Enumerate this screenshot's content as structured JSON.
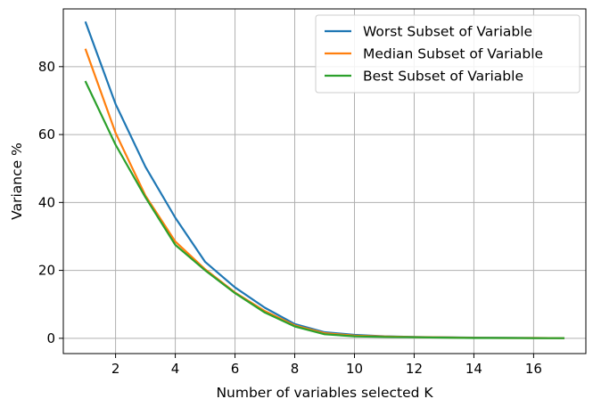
{
  "chart_data": {
    "type": "line",
    "title": "",
    "xlabel": "Number of variables selected K",
    "ylabel": "Variance %",
    "xlim": [
      0.25,
      17.75
    ],
    "ylim": [
      -4.5,
      97
    ],
    "xticks": [
      2,
      4,
      6,
      8,
      10,
      12,
      14,
      16
    ],
    "yticks": [
      0,
      20,
      40,
      60,
      80
    ],
    "grid": true,
    "legend_position": "top-right",
    "x": [
      1,
      2,
      3,
      4,
      5,
      6,
      7,
      8,
      9,
      10,
      11,
      12,
      13,
      14,
      15,
      16,
      17
    ],
    "series": [
      {
        "name": "Worst Subset of Variable",
        "color": "#1f77b4",
        "values": [
          93,
          69,
          50.5,
          35.5,
          22.5,
          15,
          9,
          4.2,
          1.8,
          1,
          0.6,
          0.4,
          0.3,
          0.2,
          0.15,
          0.1,
          0.05
        ]
      },
      {
        "name": "Median Subset of Variable",
        "color": "#ff7f0e",
        "values": [
          85,
          60.5,
          42,
          28.5,
          20.3,
          13.5,
          8,
          3.8,
          1.5,
          0.8,
          0.5,
          0.35,
          0.25,
          0.15,
          0.1,
          0.08,
          0.04
        ]
      },
      {
        "name": "Best Subset of Variable",
        "color": "#2ca02c",
        "values": [
          75.5,
          57,
          41.5,
          27.5,
          20,
          13.3,
          7.6,
          3.5,
          1.2,
          0.6,
          0.4,
          0.3,
          0.2,
          0.1,
          0.08,
          0.05,
          0.03
        ]
      }
    ]
  }
}
